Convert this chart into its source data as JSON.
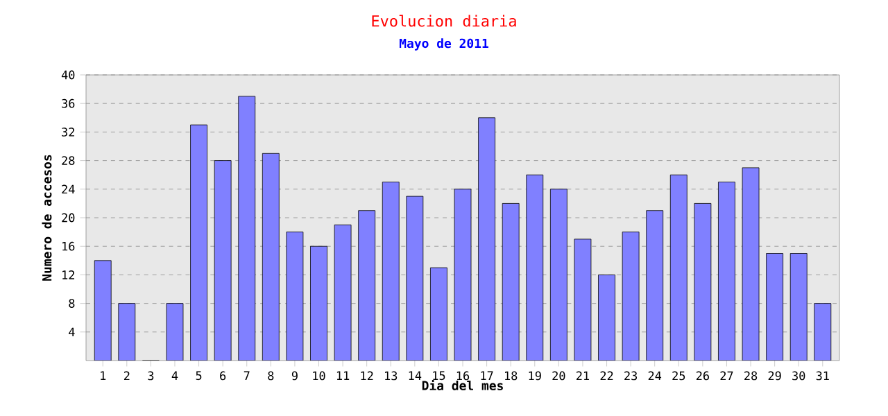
{
  "chart_data": {
    "type": "bar",
    "title": "Evolucion diaria",
    "subtitle": "Mayo de 2011",
    "xlabel": "Dia del mes",
    "ylabel": "Numero de accesos",
    "categories": [
      "1",
      "2",
      "3",
      "4",
      "5",
      "6",
      "7",
      "8",
      "9",
      "10",
      "11",
      "12",
      "13",
      "14",
      "15",
      "16",
      "17",
      "18",
      "19",
      "20",
      "21",
      "22",
      "23",
      "24",
      "25",
      "26",
      "27",
      "28",
      "29",
      "30",
      "31"
    ],
    "values": [
      14,
      8,
      0,
      8,
      33,
      28,
      37,
      29,
      18,
      16,
      19,
      21,
      25,
      23,
      13,
      24,
      34,
      22,
      26,
      24,
      17,
      12,
      18,
      21,
      26,
      22,
      25,
      27,
      15,
      15,
      8
    ],
    "color": "#8080ff",
    "ylim": [
      0,
      40
    ],
    "yticks": [
      4,
      8,
      12,
      16,
      20,
      24,
      28,
      32,
      36,
      40
    ],
    "grid": "y"
  }
}
